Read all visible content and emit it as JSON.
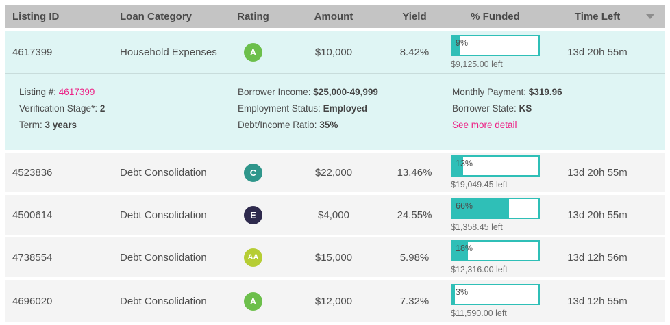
{
  "colors": {
    "teal": "#2fbfb7",
    "pink": "#ed2185",
    "header_bg": "#c4c4c4",
    "row_highlight_bg": "#dff5f4",
    "row_bg": "#f4f4f4",
    "rating_A": "#6cbf4b",
    "rating_AA": "#b6cd34",
    "rating_C": "#2f968b",
    "rating_E": "#2e2a4d"
  },
  "header": {
    "listing_id": "Listing ID",
    "loan_category": "Loan Category",
    "rating": "Rating",
    "amount": "Amount",
    "yield": "Yield",
    "funded": "% Funded",
    "time_left": "Time Left",
    "sort_icon": "sort-descending-triangle"
  },
  "rows": [
    {
      "listing_id": "4617399",
      "category": "Household Expenses",
      "rating": "A",
      "rating_color": "#6cbf4b",
      "amount": "$10,000",
      "yield": "8.42%",
      "funded_pct": "9%",
      "funded_left": "$9,125.00 left",
      "time_left": "13d 20h 55m"
    },
    {
      "listing_id": "4523836",
      "category": "Debt Consolidation",
      "rating": "C",
      "rating_color": "#2f968b",
      "amount": "$22,000",
      "yield": "13.46%",
      "funded_pct": "13%",
      "funded_left": "$19,049.45 left",
      "time_left": "13d 20h 55m"
    },
    {
      "listing_id": "4500614",
      "category": "Debt Consolidation",
      "rating": "E",
      "rating_color": "#2e2a4d",
      "amount": "$4,000",
      "yield": "24.55%",
      "funded_pct": "66%",
      "funded_left": "$1,358.45 left",
      "time_left": "13d 20h 55m"
    },
    {
      "listing_id": "4738554",
      "category": "Debt Consolidation",
      "rating": "AA",
      "rating_color": "#b6cd34",
      "amount": "$15,000",
      "yield": "5.98%",
      "funded_pct": "18%",
      "funded_left": "$12,316.00 left",
      "time_left": "13d 12h 56m"
    },
    {
      "listing_id": "4696020",
      "category": "Debt Consolidation",
      "rating": "A",
      "rating_color": "#6cbf4b",
      "amount": "$12,000",
      "yield": "7.32%",
      "funded_pct": "3%",
      "funded_left": "$11,590.00 left",
      "time_left": "13d 12h 55m"
    }
  ],
  "detail": {
    "left": [
      {
        "label": "Listing #: ",
        "value": "4617399"
      },
      {
        "label": "Verification Stage*: ",
        "value": "2"
      },
      {
        "label": "Term: ",
        "value": "3 years"
      }
    ],
    "mid": [
      {
        "label": "Borrower Income: ",
        "value": "$25,000-49,999"
      },
      {
        "label": "Employment Status: ",
        "value": "Employed"
      },
      {
        "label": "Debt/Income Ratio: ",
        "value": "35%"
      }
    ],
    "right": [
      {
        "label": "Monthly Payment: ",
        "value": "$319.96"
      },
      {
        "label": "Borrower State: ",
        "value": "KS"
      },
      {
        "label": "",
        "value": "See more detail"
      }
    ]
  }
}
